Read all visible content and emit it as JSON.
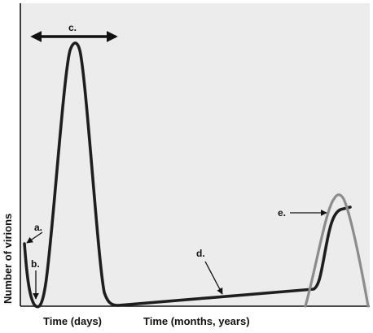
{
  "labels": {
    "a": "a.",
    "b": "b.",
    "c": "c.",
    "d": "d.",
    "e": "e."
  },
  "axes": {
    "y_label": "Number of virions",
    "x_label_left": "Time (days)",
    "x_label_right": "Time (months, years)"
  },
  "colors": {
    "background": "#ececec",
    "main_curve": "#1e1e1e",
    "gray_curve": "#8c8c8c"
  }
}
